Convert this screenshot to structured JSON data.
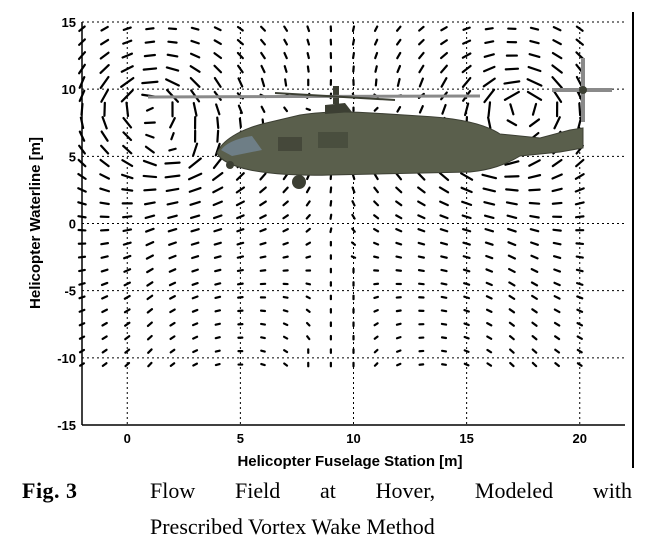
{
  "chart_data": {
    "type": "vector-field",
    "title": "",
    "xlabel": "Helicopter Fuselage Station [m]",
    "ylabel": "Helicopter Waterline [m]",
    "xlim": [
      -2,
      22
    ],
    "ylim": [
      -15,
      15
    ],
    "xticks": [
      "0",
      "5",
      "10",
      "15",
      "20"
    ],
    "yticks": [
      "15",
      "10",
      "5",
      "0",
      "-5",
      "-10",
      "-15"
    ],
    "xtick_values": [
      0,
      5,
      10,
      15,
      20
    ],
    "ytick_values": [
      15,
      10,
      5,
      0,
      -5,
      -10,
      -15
    ],
    "grid": true,
    "grid_style": "dotted",
    "rotor_hub": [
      9.2,
      9.7
    ],
    "rotor_radius": 8.2,
    "grid_x_range": [
      -2.0,
      20.5
    ],
    "grid_y_range": [
      -10.5,
      14.5
    ],
    "grid_step": 1.0
  },
  "caption": {
    "label": "Fig.   3",
    "line1": "Flow Field at Hover, Modeled with",
    "line2": "Prescribed Vortex Wake Method"
  },
  "colors": {
    "arrow": "#000000",
    "fuselage": "#5a5f4c",
    "fuselage_dark": "#3c3f33",
    "window": "#6e7e86",
    "rotor": "#8a8a8a"
  },
  "icons": {
    "helicopter": "helicopter-image"
  }
}
